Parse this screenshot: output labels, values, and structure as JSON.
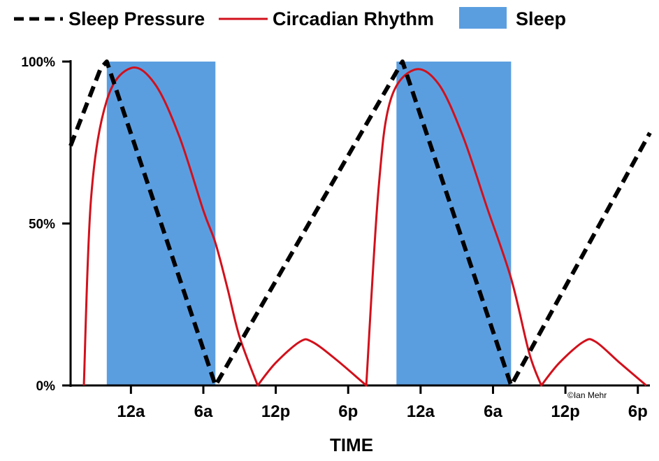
{
  "chart_data": {
    "type": "line",
    "xlabel": "TIME",
    "ylabel": "",
    "ylim": [
      0,
      100
    ],
    "x_range_hours": [
      -5,
      43
    ],
    "yticks": [
      {
        "value": 0,
        "label": "0%"
      },
      {
        "value": 50,
        "label": "50%"
      },
      {
        "value": 100,
        "label": "100%"
      }
    ],
    "xticks": [
      {
        "hour": 0,
        "label": "12a"
      },
      {
        "hour": 6,
        "label": "6a"
      },
      {
        "hour": 12,
        "label": "12p"
      },
      {
        "hour": 18,
        "label": "6p"
      },
      {
        "hour": 24,
        "label": "12a"
      },
      {
        "hour": 30,
        "label": "6a"
      },
      {
        "hour": 36,
        "label": "12p"
      },
      {
        "hour": 42,
        "label": "6p"
      }
    ],
    "legend": {
      "position": "top",
      "items": [
        {
          "label": "Sleep Pressure",
          "style": "dashed",
          "color": "#000000"
        },
        {
          "label": "Circadian Rhythm",
          "style": "solid",
          "color": "#d2101b"
        },
        {
          "label": "Sleep",
          "style": "box",
          "color": "#5b9ee0"
        }
      ]
    },
    "sleep_periods": [
      {
        "start": -2,
        "end": 7
      },
      {
        "start": 22,
        "end": 31.5
      }
    ],
    "series": [
      {
        "name": "Sleep Pressure",
        "style": "dashed",
        "color": "#000000",
        "points": [
          [
            -5,
            74
          ],
          [
            -2.5,
            98
          ],
          [
            -2,
            100
          ],
          [
            7,
            0
          ],
          [
            22.5,
            100
          ],
          [
            31.5,
            0
          ],
          [
            43,
            78
          ]
        ]
      },
      {
        "name": "Circadian Rhythm",
        "style": "solid",
        "color": "#d2101b",
        "points": [
          [
            -3.9,
            0
          ],
          [
            -3.3,
            58
          ],
          [
            -2,
            88
          ],
          [
            0,
            98
          ],
          [
            2,
            93
          ],
          [
            4,
            77
          ],
          [
            6,
            54
          ],
          [
            7,
            44
          ],
          [
            8,
            30
          ],
          [
            9,
            15
          ],
          [
            10.5,
            0
          ],
          [
            12,
            7
          ],
          [
            14,
            13.5
          ],
          [
            15,
            13.5
          ],
          [
            17,
            8
          ],
          [
            19.5,
            0
          ],
          [
            20.5,
            60
          ],
          [
            21.5,
            88
          ],
          [
            23.5,
            97.5
          ],
          [
            25.5,
            93
          ],
          [
            27.5,
            77
          ],
          [
            29.5,
            55
          ],
          [
            31.5,
            33
          ],
          [
            33,
            10
          ],
          [
            34,
            0
          ],
          [
            35.5,
            7
          ],
          [
            37.5,
            13.5
          ],
          [
            38.5,
            13.5
          ],
          [
            40.5,
            7
          ],
          [
            42.7,
            0
          ]
        ]
      }
    ],
    "annotations": [
      {
        "text": "©Ian Mehr",
        "position": "bottom-right"
      }
    ]
  }
}
